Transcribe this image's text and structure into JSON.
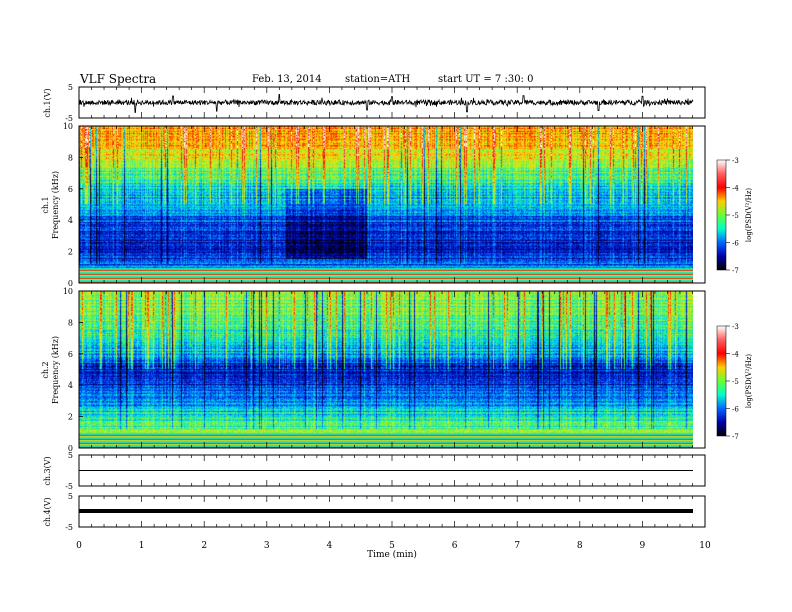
{
  "header": {
    "title": "VLF  Spectra",
    "date": "Feb. 13, 2014",
    "station": "station=ATH",
    "start": "start  UT =   7 :30: 0"
  },
  "axes": {
    "ch1_label": "ch.1(V)",
    "ch3_label": "ch.3(V)",
    "ch4_label": "ch.4(V)",
    "sp1_label": "ch.1",
    "sp2_label": "ch.2",
    "freq_label": "Frequency  (kHz)",
    "time_label": "Time  (min)"
  },
  "colorbar": {
    "label": "log(PSD(V²/Hz)",
    "ticks": [
      -3,
      -4,
      -5,
      -6,
      -7
    ],
    "stops": [
      "#ffffff",
      "#ff6060",
      "#ff0000",
      "#ffcc00",
      "#66ff33",
      "#00ffcc",
      "#0066ff",
      "#0000aa",
      "#000000"
    ]
  },
  "chart_data": [
    {
      "type": "line",
      "name": "ch.1 waveform",
      "ylabel": "ch.1(V)",
      "ylim": [
        -5,
        5
      ],
      "yticks": [
        5,
        -5
      ],
      "xlim": [
        0,
        10
      ],
      "xlabel": "",
      "typical_range": [
        -0.8,
        0.8
      ],
      "spikes": [
        [
          0.9,
          -3.2
        ],
        [
          1.5,
          2.1
        ],
        [
          2.2,
          -2.8
        ],
        [
          3.2,
          2.6
        ],
        [
          4.6,
          -2.4
        ],
        [
          5.0,
          1.9
        ],
        [
          6.2,
          -3.0
        ],
        [
          7.1,
          2.2
        ],
        [
          8.3,
          -2.6
        ],
        [
          9.0,
          2.0
        ]
      ]
    },
    {
      "type": "heatmap",
      "name": "ch.1 spectrogram",
      "ylabel": "Frequency  (kHz)",
      "xlim": [
        0,
        9.8
      ],
      "ylim": [
        0,
        10
      ],
      "yticks": [
        0,
        2,
        4,
        6,
        8,
        10
      ],
      "colorbar_range": [
        -7,
        -3
      ],
      "profile_freq_khz": [
        0,
        0.5,
        1,
        2,
        3,
        4,
        5,
        6,
        7,
        8,
        9,
        10
      ],
      "profile_logpsd": [
        -3.5,
        -3.8,
        -5.8,
        -6.4,
        -6.2,
        -6.0,
        -5.6,
        -5.3,
        -5.0,
        -4.5,
        -4.1,
        -4.0
      ],
      "dark_period_min": [
        3.3,
        4.6
      ]
    },
    {
      "type": "heatmap",
      "name": "ch.2 spectrogram",
      "ylabel": "Frequency  (kHz)",
      "xlim": [
        0,
        9.8
      ],
      "ylim": [
        0,
        10
      ],
      "yticks": [
        0,
        2,
        4,
        6,
        8,
        10
      ],
      "colorbar_range": [
        -7,
        -3
      ],
      "profile_freq_khz": [
        0,
        0.5,
        1,
        2,
        3,
        4,
        5,
        6,
        7,
        8,
        9,
        10
      ],
      "profile_logpsd": [
        -3.6,
        -4.2,
        -4.8,
        -5.2,
        -5.8,
        -6.1,
        -6.3,
        -5.6,
        -5.2,
        -5.0,
        -4.8,
        -4.7
      ],
      "dark_period_min": []
    },
    {
      "type": "line",
      "name": "ch.3 waveform",
      "ylabel": "ch.3(V)",
      "ylim": [
        -5,
        5
      ],
      "yticks": [
        5,
        -5
      ],
      "xlim": [
        0,
        10
      ],
      "level": 0,
      "typical_range": [
        -0.05,
        0.05
      ]
    },
    {
      "type": "line",
      "name": "ch.4 waveform",
      "ylabel": "ch.4(V)",
      "ylim": [
        -5,
        5
      ],
      "yticks": [
        5,
        -5
      ],
      "xlim": [
        0,
        10
      ],
      "level": 0,
      "typical_range": [
        -0.3,
        0.3
      ],
      "xticks": [
        0,
        1,
        2,
        3,
        4,
        5,
        6,
        7,
        8,
        9,
        10
      ],
      "xlabel": "Time  (min)"
    }
  ]
}
